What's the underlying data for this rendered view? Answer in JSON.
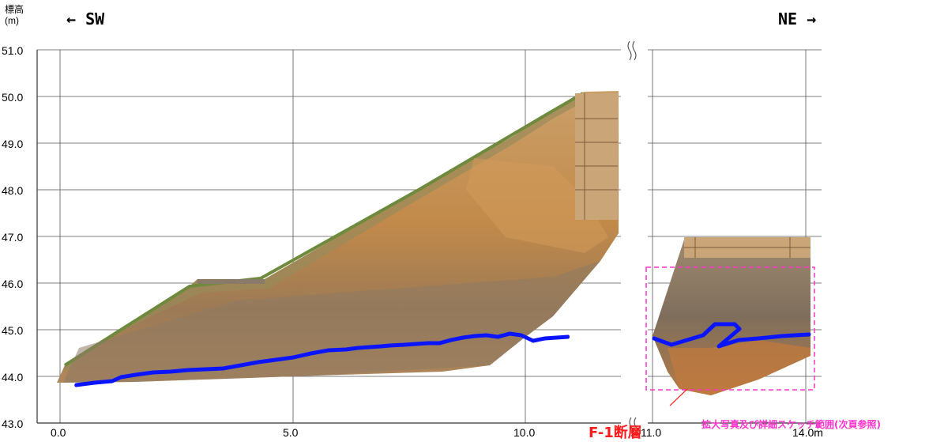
{
  "y_axis": {
    "unit_line1": "標高",
    "unit_line2": "(m)",
    "ticks": [
      "51.0",
      "50.0",
      "49.0",
      "48.0",
      "47.0",
      "46.0",
      "45.0",
      "44.0",
      "43.0"
    ]
  },
  "x_axis": {
    "ticks": [
      "0.0",
      "5.0",
      "10.0",
      "11.0",
      "14.0m"
    ]
  },
  "direction": {
    "left": "← SW",
    "right": "NE →"
  },
  "annotations": {
    "fault": "F-1断層",
    "detail_range": "拡大写真及び詳細スケッチ範囲(次頁参照)"
  },
  "colors": {
    "fault_line": "#0a14ff",
    "range_box": "#ff33cc",
    "fault_label": "#ff1a1a",
    "soil": "#c08a4a",
    "grass": "#6e8a3c"
  }
}
